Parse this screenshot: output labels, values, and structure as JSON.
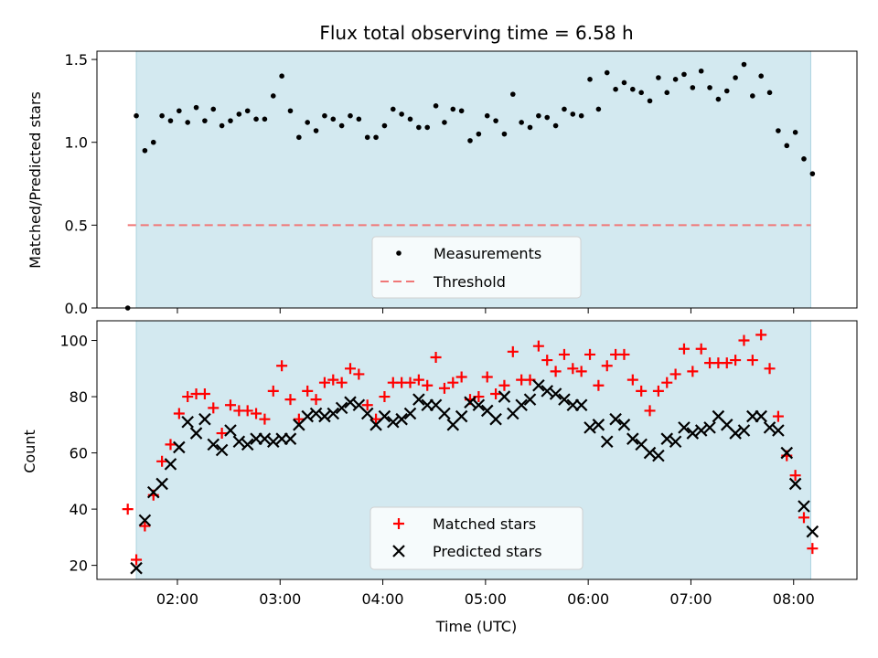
{
  "chart_data": [
    {
      "type": "scatter",
      "title": "Flux total observing time = 6.58 h",
      "xlabel": "",
      "ylabel": "Matched/Predicted stars",
      "xlim": [
        "01:13",
        "08:37"
      ],
      "ylim": [
        0,
        1.55
      ],
      "yticks": [
        0.0,
        0.5,
        1.0,
        1.5
      ],
      "ytick_labels": [
        "0.0",
        "0.5",
        "1.0",
        "1.5"
      ],
      "xticks": [
        "02:00",
        "03:00",
        "04:00",
        "05:00",
        "06:00",
        "07:00",
        "08:00"
      ],
      "xtick_labels_shown": false,
      "shaded_span": [
        "01:36",
        "08:10"
      ],
      "shade_color": "#d3e9f0",
      "threshold": {
        "name": "Threshold",
        "y": 0.5,
        "x_start": "01:31",
        "x_end": "08:10",
        "color": "#f07777"
      },
      "legend_placement": "bottom-center",
      "series": [
        {
          "name": "Measurements",
          "color": "#000000",
          "points": [
            [
              "01:31",
              0.0
            ],
            [
              "01:36",
              1.16
            ],
            [
              "01:41",
              0.95
            ],
            [
              "01:46",
              1.0
            ],
            [
              "01:51",
              1.16
            ],
            [
              "01:56",
              1.13
            ],
            [
              "02:01",
              1.19
            ],
            [
              "02:06",
              1.12
            ],
            [
              "02:11",
              1.21
            ],
            [
              "02:16",
              1.13
            ],
            [
              "02:21",
              1.2
            ],
            [
              "02:26",
              1.1
            ],
            [
              "02:31",
              1.13
            ],
            [
              "02:36",
              1.17
            ],
            [
              "02:41",
              1.19
            ],
            [
              "02:46",
              1.14
            ],
            [
              "02:51",
              1.14
            ],
            [
              "02:56",
              1.28
            ],
            [
              "03:01",
              1.4
            ],
            [
              "03:06",
              1.19
            ],
            [
              "03:11",
              1.03
            ],
            [
              "03:16",
              1.12
            ],
            [
              "03:21",
              1.07
            ],
            [
              "03:26",
              1.16
            ],
            [
              "03:31",
              1.14
            ],
            [
              "03:36",
              1.1
            ],
            [
              "03:41",
              1.16
            ],
            [
              "03:46",
              1.14
            ],
            [
              "03:51",
              1.03
            ],
            [
              "03:56",
              1.03
            ],
            [
              "04:01",
              1.1
            ],
            [
              "04:06",
              1.2
            ],
            [
              "04:11",
              1.17
            ],
            [
              "04:16",
              1.14
            ],
            [
              "04:21",
              1.09
            ],
            [
              "04:26",
              1.09
            ],
            [
              "04:31",
              1.22
            ],
            [
              "04:36",
              1.12
            ],
            [
              "04:41",
              1.2
            ],
            [
              "04:46",
              1.19
            ],
            [
              "04:51",
              1.01
            ],
            [
              "04:56",
              1.05
            ],
            [
              "05:01",
              1.16
            ],
            [
              "05:06",
              1.13
            ],
            [
              "05:11",
              1.05
            ],
            [
              "05:16",
              1.29
            ],
            [
              "05:21",
              1.12
            ],
            [
              "05:26",
              1.09
            ],
            [
              "05:31",
              1.16
            ],
            [
              "05:36",
              1.15
            ],
            [
              "05:41",
              1.1
            ],
            [
              "05:46",
              1.2
            ],
            [
              "05:51",
              1.17
            ],
            [
              "05:56",
              1.16
            ],
            [
              "06:01",
              1.38
            ],
            [
              "06:06",
              1.2
            ],
            [
              "06:11",
              1.42
            ],
            [
              "06:16",
              1.32
            ],
            [
              "06:21",
              1.36
            ],
            [
              "06:26",
              1.32
            ],
            [
              "06:31",
              1.3
            ],
            [
              "06:36",
              1.25
            ],
            [
              "06:41",
              1.39
            ],
            [
              "06:46",
              1.3
            ],
            [
              "06:51",
              1.38
            ],
            [
              "06:56",
              1.41
            ],
            [
              "07:01",
              1.33
            ],
            [
              "07:06",
              1.43
            ],
            [
              "07:11",
              1.33
            ],
            [
              "07:16",
              1.26
            ],
            [
              "07:21",
              1.31
            ],
            [
              "07:26",
              1.39
            ],
            [
              "07:31",
              1.47
            ],
            [
              "07:36",
              1.28
            ],
            [
              "07:41",
              1.4
            ],
            [
              "07:46",
              1.3
            ],
            [
              "07:51",
              1.07
            ],
            [
              "07:56",
              0.98
            ],
            [
              "08:01",
              1.06
            ],
            [
              "08:06",
              0.9
            ],
            [
              "08:11",
              0.81
            ]
          ]
        }
      ]
    },
    {
      "type": "scatter",
      "title": "",
      "xlabel": "Time (UTC)",
      "ylabel": "Count",
      "xlim": [
        "01:13",
        "08:37"
      ],
      "ylim": [
        15,
        107
      ],
      "yticks": [
        20,
        40,
        60,
        80,
        100
      ],
      "ytick_labels": [
        "20",
        "40",
        "60",
        "80",
        "100"
      ],
      "xticks": [
        "02:00",
        "03:00",
        "04:00",
        "05:00",
        "06:00",
        "07:00",
        "08:00"
      ],
      "xtick_labels": [
        "02:00",
        "03:00",
        "04:00",
        "05:00",
        "06:00",
        "07:00",
        "08:00"
      ],
      "shaded_span": [
        "01:36",
        "08:10"
      ],
      "shade_color": "#d3e9f0",
      "legend_placement": "bottom-center",
      "series": [
        {
          "name": "Matched stars",
          "marker": "plus",
          "color": "#ff0000",
          "points": [
            [
              "01:31",
              40
            ],
            [
              "01:36",
              22
            ],
            [
              "01:41",
              34
            ],
            [
              "01:46",
              45
            ],
            [
              "01:51",
              57
            ],
            [
              "01:56",
              63
            ],
            [
              "02:01",
              74
            ],
            [
              "02:06",
              80
            ],
            [
              "02:11",
              81
            ],
            [
              "02:16",
              81
            ],
            [
              "02:21",
              76
            ],
            [
              "02:26",
              67
            ],
            [
              "02:31",
              77
            ],
            [
              "02:36",
              75
            ],
            [
              "02:41",
              75
            ],
            [
              "02:46",
              74
            ],
            [
              "02:51",
              72
            ],
            [
              "02:56",
              82
            ],
            [
              "03:01",
              91
            ],
            [
              "03:06",
              79
            ],
            [
              "03:11",
              72
            ],
            [
              "03:16",
              82
            ],
            [
              "03:21",
              79
            ],
            [
              "03:26",
              85
            ],
            [
              "03:31",
              86
            ],
            [
              "03:36",
              85
            ],
            [
              "03:41",
              90
            ],
            [
              "03:46",
              88
            ],
            [
              "03:51",
              77
            ],
            [
              "03:56",
              72
            ],
            [
              "04:01",
              80
            ],
            [
              "04:06",
              85
            ],
            [
              "04:11",
              85
            ],
            [
              "04:16",
              85
            ],
            [
              "04:21",
              86
            ],
            [
              "04:26",
              84
            ],
            [
              "04:31",
              94
            ],
            [
              "04:36",
              83
            ],
            [
              "04:41",
              85
            ],
            [
              "04:46",
              87
            ],
            [
              "04:51",
              79
            ],
            [
              "04:56",
              80
            ],
            [
              "05:01",
              87
            ],
            [
              "05:06",
              81
            ],
            [
              "05:11",
              84
            ],
            [
              "05:16",
              96
            ],
            [
              "05:21",
              86
            ],
            [
              "05:26",
              86
            ],
            [
              "05:31",
              98
            ],
            [
              "05:36",
              93
            ],
            [
              "05:41",
              89
            ],
            [
              "05:46",
              95
            ],
            [
              "05:51",
              90
            ],
            [
              "05:56",
              89
            ],
            [
              "06:01",
              95
            ],
            [
              "06:06",
              84
            ],
            [
              "06:11",
              91
            ],
            [
              "06:16",
              95
            ],
            [
              "06:21",
              95
            ],
            [
              "06:26",
              86
            ],
            [
              "06:31",
              82
            ],
            [
              "06:36",
              75
            ],
            [
              "06:41",
              82
            ],
            [
              "06:46",
              85
            ],
            [
              "06:51",
              88
            ],
            [
              "06:56",
              97
            ],
            [
              "07:01",
              89
            ],
            [
              "07:06",
              97
            ],
            [
              "07:11",
              92
            ],
            [
              "07:16",
              92
            ],
            [
              "07:21",
              92
            ],
            [
              "07:26",
              93
            ],
            [
              "07:31",
              100
            ],
            [
              "07:36",
              93
            ],
            [
              "07:41",
              102
            ],
            [
              "07:46",
              90
            ],
            [
              "07:51",
              73
            ],
            [
              "07:56",
              59
            ],
            [
              "08:01",
              52
            ],
            [
              "08:06",
              37
            ],
            [
              "08:11",
              26
            ]
          ]
        },
        {
          "name": "Predicted stars",
          "marker": "x",
          "color": "#000000",
          "points": [
            [
              "01:36",
              19
            ],
            [
              "01:41",
              36
            ],
            [
              "01:46",
              46
            ],
            [
              "01:51",
              49
            ],
            [
              "01:56",
              56
            ],
            [
              "02:01",
              62
            ],
            [
              "02:06",
              71
            ],
            [
              "02:11",
              67
            ],
            [
              "02:16",
              72
            ],
            [
              "02:21",
              63
            ],
            [
              "02:26",
              61
            ],
            [
              "02:31",
              68
            ],
            [
              "02:36",
              64
            ],
            [
              "02:41",
              63
            ],
            [
              "02:46",
              65
            ],
            [
              "02:51",
              65
            ],
            [
              "02:56",
              64
            ],
            [
              "03:01",
              65
            ],
            [
              "03:06",
              65
            ],
            [
              "03:11",
              70
            ],
            [
              "03:16",
              73
            ],
            [
              "03:21",
              74
            ],
            [
              "03:26",
              73
            ],
            [
              "03:31",
              74
            ],
            [
              "03:36",
              76
            ],
            [
              "03:41",
              78
            ],
            [
              "03:46",
              77
            ],
            [
              "03:51",
              74
            ],
            [
              "03:56",
              70
            ],
            [
              "04:01",
              73
            ],
            [
              "04:06",
              71
            ],
            [
              "04:11",
              72
            ],
            [
              "04:16",
              74
            ],
            [
              "04:21",
              79
            ],
            [
              "04:26",
              77
            ],
            [
              "04:31",
              77
            ],
            [
              "04:36",
              74
            ],
            [
              "04:41",
              70
            ],
            [
              "04:46",
              73
            ],
            [
              "04:51",
              78
            ],
            [
              "04:56",
              77
            ],
            [
              "05:01",
              75
            ],
            [
              "05:06",
              72
            ],
            [
              "05:11",
              80
            ],
            [
              "05:16",
              74
            ],
            [
              "05:21",
              77
            ],
            [
              "05:26",
              79
            ],
            [
              "05:31",
              84
            ],
            [
              "05:36",
              82
            ],
            [
              "05:41",
              81
            ],
            [
              "05:46",
              79
            ],
            [
              "05:51",
              77
            ],
            [
              "05:56",
              77
            ],
            [
              "06:01",
              69
            ],
            [
              "06:06",
              70
            ],
            [
              "06:11",
              64
            ],
            [
              "06:16",
              72
            ],
            [
              "06:21",
              70
            ],
            [
              "06:26",
              65
            ],
            [
              "06:31",
              63
            ],
            [
              "06:36",
              60
            ],
            [
              "06:41",
              59
            ],
            [
              "06:46",
              65
            ],
            [
              "06:51",
              64
            ],
            [
              "06:56",
              69
            ],
            [
              "07:01",
              67
            ],
            [
              "07:06",
              68
            ],
            [
              "07:11",
              69
            ],
            [
              "07:16",
              73
            ],
            [
              "07:21",
              70
            ],
            [
              "07:26",
              67
            ],
            [
              "07:31",
              68
            ],
            [
              "07:36",
              73
            ],
            [
              "07:41",
              73
            ],
            [
              "07:46",
              69
            ],
            [
              "07:51",
              68
            ],
            [
              "07:56",
              60
            ],
            [
              "08:01",
              49
            ],
            [
              "08:06",
              41
            ],
            [
              "08:11",
              32
            ]
          ]
        }
      ]
    }
  ]
}
